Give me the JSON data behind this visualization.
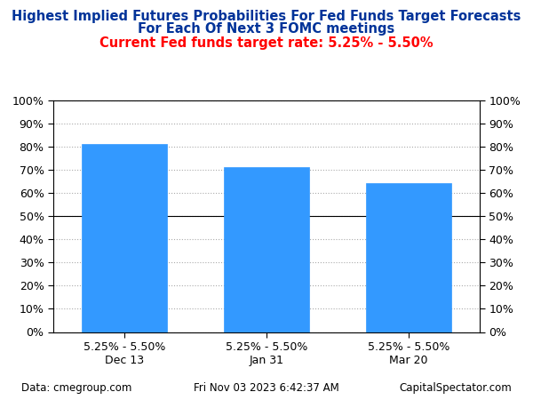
{
  "title_line1": "Highest Implied Futures Probabilities For Fed Funds Target Forecasts",
  "title_line2": "For Each Of Next 3 FOMC meetings",
  "subtitle": "Current Fed funds target rate: 5.25% - 5.50%",
  "categories": [
    "5.25% - 5.50%\nDec 13",
    "5.25% - 5.50%\nJan 31",
    "5.25% - 5.50%\nMar 20"
  ],
  "values": [
    81,
    71,
    64
  ],
  "bar_color": "#3399FF",
  "bar_edge_color": "#3399FF",
  "title_color": "#003399",
  "subtitle_color": "#FF0000",
  "tick_label_color": "#000000",
  "background_color": "#FFFFFF",
  "ylim": [
    0,
    100
  ],
  "yticks": [
    0,
    10,
    20,
    30,
    40,
    50,
    60,
    70,
    80,
    90,
    100
  ],
  "grid_color": "#AAAAAA",
  "footer_left": "Data: cmegroup.com",
  "footer_center": "Fri Nov 03 2023 6:42:37 AM",
  "footer_right": "CapitalSpectator.com",
  "title_fontsize": 10.5,
  "subtitle_fontsize": 10.5,
  "tick_fontsize": 9,
  "footer_fontsize": 8.5
}
